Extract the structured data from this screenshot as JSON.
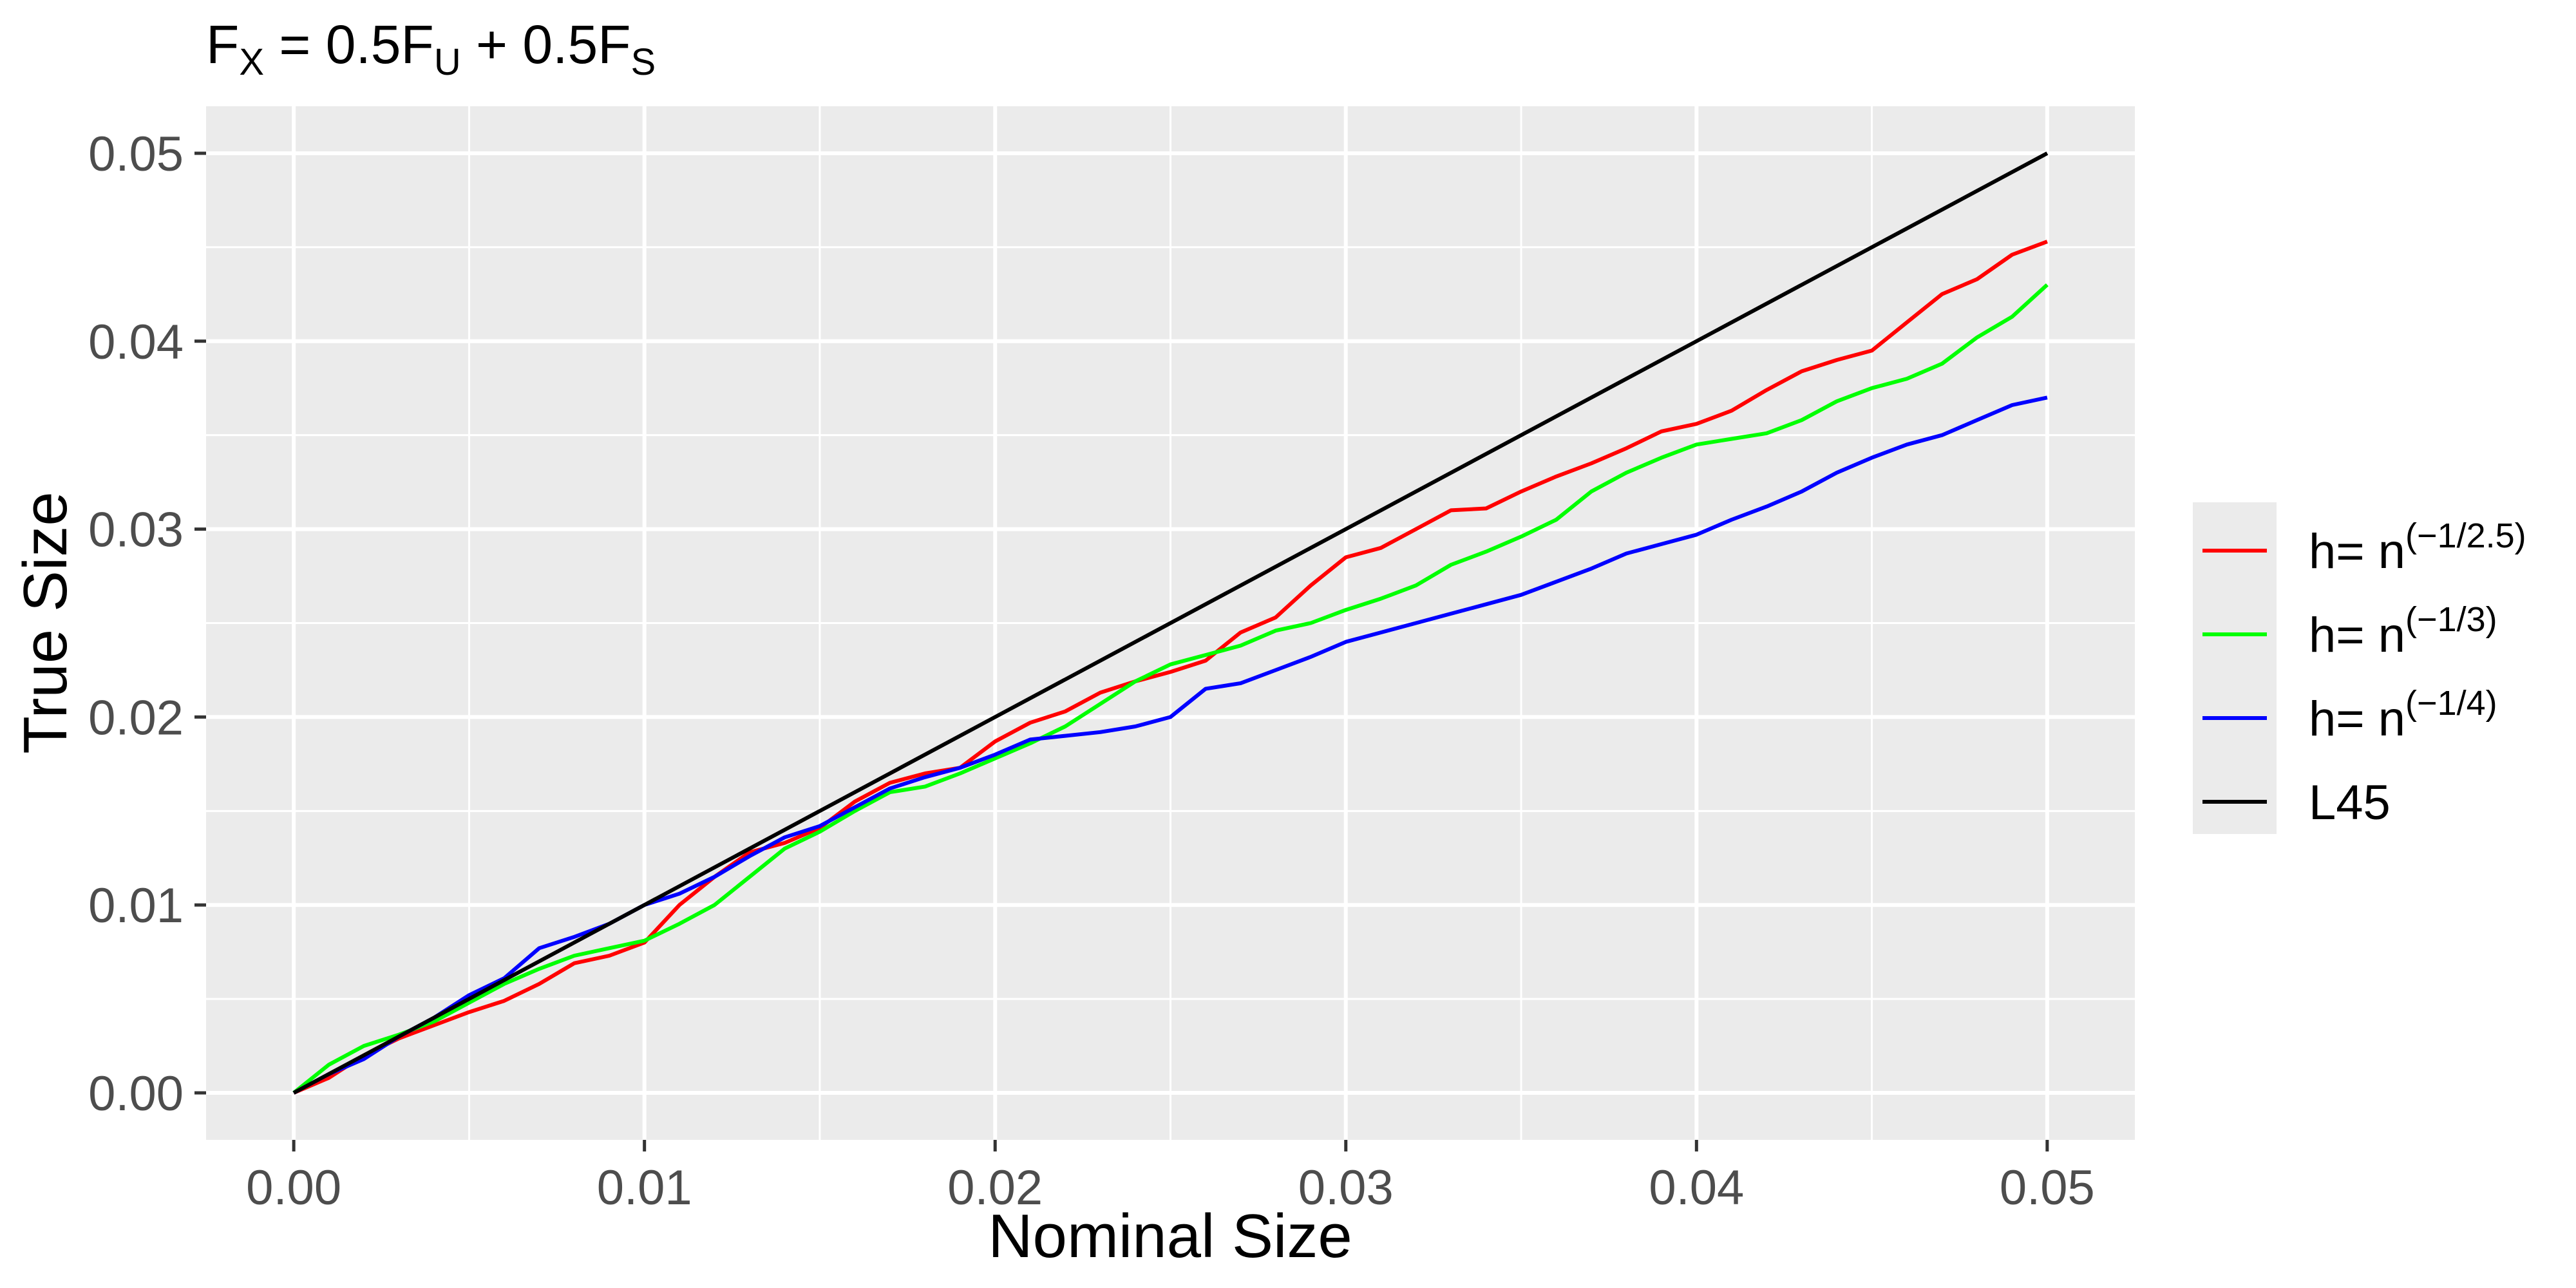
{
  "chart_data": {
    "type": "line",
    "title": {
      "main": "F",
      "main_sub": "X",
      "eq": " = 0.5F",
      "sub1": "U",
      "plus": " + 0.5F",
      "sub2": "S"
    },
    "xlabel": "Nominal Size",
    "ylabel": "True Size",
    "xlim": [
      -0.0025,
      0.0525
    ],
    "ylim": [
      -0.0025,
      0.0525
    ],
    "xticks": [
      0,
      0.01,
      0.02,
      0.03,
      0.04,
      0.05
    ],
    "xtick_labels": [
      "0.00",
      "0.01",
      "0.02",
      "0.03",
      "0.04",
      "0.05"
    ],
    "yticks": [
      0,
      0.01,
      0.02,
      0.03,
      0.04,
      0.05
    ],
    "ytick_labels": [
      "0.00",
      "0.01",
      "0.02",
      "0.03",
      "0.04",
      "0.05"
    ],
    "grid": true,
    "legend_position": "right",
    "series": [
      {
        "key": "red",
        "color": "#ff0000",
        "legend_base": "h= n",
        "legend_exp": "(−1/2.5)",
        "x": [
          0,
          0.001,
          0.002,
          0.003,
          0.004,
          0.005,
          0.006,
          0.007,
          0.008,
          0.009,
          0.01,
          0.011,
          0.012,
          0.013,
          0.014,
          0.015,
          0.016,
          0.017,
          0.018,
          0.019,
          0.02,
          0.021,
          0.022,
          0.023,
          0.024,
          0.025,
          0.026,
          0.027,
          0.028,
          0.029,
          0.03,
          0.031,
          0.032,
          0.033,
          0.034,
          0.035,
          0.036,
          0.037,
          0.038,
          0.039,
          0.04,
          0.041,
          0.042,
          0.043,
          0.044,
          0.045,
          0.046,
          0.047,
          0.048,
          0.049,
          0.05
        ],
        "y": [
          0,
          0.0008,
          0.002,
          0.0029,
          0.0036,
          0.0043,
          0.0049,
          0.0058,
          0.0069,
          0.0073,
          0.008,
          0.01,
          0.0115,
          0.0128,
          0.0133,
          0.0141,
          0.0155,
          0.0165,
          0.017,
          0.0173,
          0.0187,
          0.0197,
          0.0203,
          0.0213,
          0.0219,
          0.0224,
          0.023,
          0.0245,
          0.0253,
          0.027,
          0.0285,
          0.029,
          0.03,
          0.031,
          0.0311,
          0.032,
          0.0328,
          0.0335,
          0.0343,
          0.0352,
          0.0356,
          0.0363,
          0.0374,
          0.0384,
          0.039,
          0.0395,
          0.041,
          0.0425,
          0.0433,
          0.0446,
          0.0453
        ]
      },
      {
        "key": "green",
        "color": "#00ff00",
        "legend_base": "h= n",
        "legend_exp": "(−1/3)",
        "x": [
          0,
          0.001,
          0.002,
          0.003,
          0.004,
          0.005,
          0.006,
          0.007,
          0.008,
          0.009,
          0.01,
          0.011,
          0.012,
          0.013,
          0.014,
          0.015,
          0.016,
          0.017,
          0.018,
          0.019,
          0.02,
          0.021,
          0.022,
          0.023,
          0.024,
          0.025,
          0.026,
          0.027,
          0.028,
          0.029,
          0.03,
          0.031,
          0.032,
          0.033,
          0.034,
          0.035,
          0.036,
          0.037,
          0.038,
          0.039,
          0.04,
          0.041,
          0.042,
          0.043,
          0.044,
          0.045,
          0.046,
          0.047,
          0.048,
          0.049,
          0.05
        ],
        "y": [
          0,
          0.0015,
          0.0025,
          0.0031,
          0.0038,
          0.0048,
          0.0058,
          0.0066,
          0.0073,
          0.0077,
          0.0081,
          0.009,
          0.01,
          0.0115,
          0.013,
          0.0139,
          0.015,
          0.016,
          0.0163,
          0.017,
          0.0178,
          0.0186,
          0.0195,
          0.0207,
          0.0219,
          0.0228,
          0.0233,
          0.0238,
          0.0246,
          0.025,
          0.0257,
          0.0263,
          0.027,
          0.0281,
          0.0288,
          0.0296,
          0.0305,
          0.032,
          0.033,
          0.0338,
          0.0345,
          0.0348,
          0.0351,
          0.0358,
          0.0368,
          0.0375,
          0.038,
          0.0388,
          0.0402,
          0.0413,
          0.043
        ]
      },
      {
        "key": "blue",
        "color": "#0000ff",
        "legend_base": "h= n",
        "legend_exp": "(−1/4)",
        "x": [
          0,
          0.001,
          0.002,
          0.003,
          0.004,
          0.005,
          0.006,
          0.007,
          0.008,
          0.009,
          0.01,
          0.011,
          0.012,
          0.013,
          0.014,
          0.015,
          0.016,
          0.017,
          0.018,
          0.019,
          0.02,
          0.021,
          0.022,
          0.023,
          0.024,
          0.025,
          0.026,
          0.027,
          0.028,
          0.029,
          0.03,
          0.031,
          0.032,
          0.033,
          0.034,
          0.035,
          0.036,
          0.037,
          0.038,
          0.039,
          0.04,
          0.041,
          0.042,
          0.043,
          0.044,
          0.045,
          0.046,
          0.047,
          0.048,
          0.049,
          0.05
        ],
        "y": [
          0,
          0.001,
          0.0018,
          0.003,
          0.004,
          0.0052,
          0.0061,
          0.0077,
          0.0083,
          0.009,
          0.01,
          0.0106,
          0.0115,
          0.0126,
          0.0136,
          0.0142,
          0.0152,
          0.0162,
          0.0168,
          0.0173,
          0.018,
          0.0188,
          0.019,
          0.0192,
          0.0195,
          0.02,
          0.0215,
          0.0218,
          0.0225,
          0.0232,
          0.024,
          0.0245,
          0.025,
          0.0255,
          0.026,
          0.0265,
          0.0272,
          0.0279,
          0.0287,
          0.0292,
          0.0297,
          0.0305,
          0.0312,
          0.032,
          0.033,
          0.0338,
          0.0345,
          0.035,
          0.0358,
          0.0366,
          0.037
        ]
      },
      {
        "key": "black",
        "color": "#000000",
        "legend_base": "L45",
        "legend_exp": "",
        "x": [
          0,
          0.05
        ],
        "y": [
          0,
          0.05
        ]
      }
    ]
  }
}
